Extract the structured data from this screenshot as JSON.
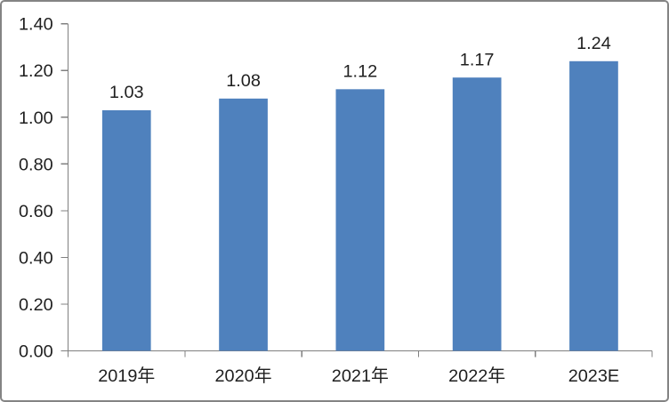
{
  "chart_data": {
    "type": "bar",
    "title": "",
    "categories": [
      "2019年",
      "2020年",
      "2021年",
      "2022年",
      "2023E"
    ],
    "values": [
      1.03,
      1.08,
      1.12,
      1.17,
      1.24
    ],
    "value_labels": [
      "1.03",
      "1.08",
      "1.12",
      "1.17",
      "1.24"
    ],
    "xlabel": "",
    "ylabel": "",
    "ylim": [
      0.0,
      1.4
    ],
    "y_tick_interval": 0.2,
    "y_tick_labels": [
      "0.00",
      "0.20",
      "0.40",
      "0.60",
      "0.80",
      "1.00",
      "1.20",
      "1.40"
    ],
    "grid": false,
    "legend_position": "none",
    "colors": {
      "bar": "#4F81BD",
      "axis": "#808080",
      "text": "#1f1f1f",
      "background": "#ffffff",
      "frame_border": "#848484"
    }
  }
}
